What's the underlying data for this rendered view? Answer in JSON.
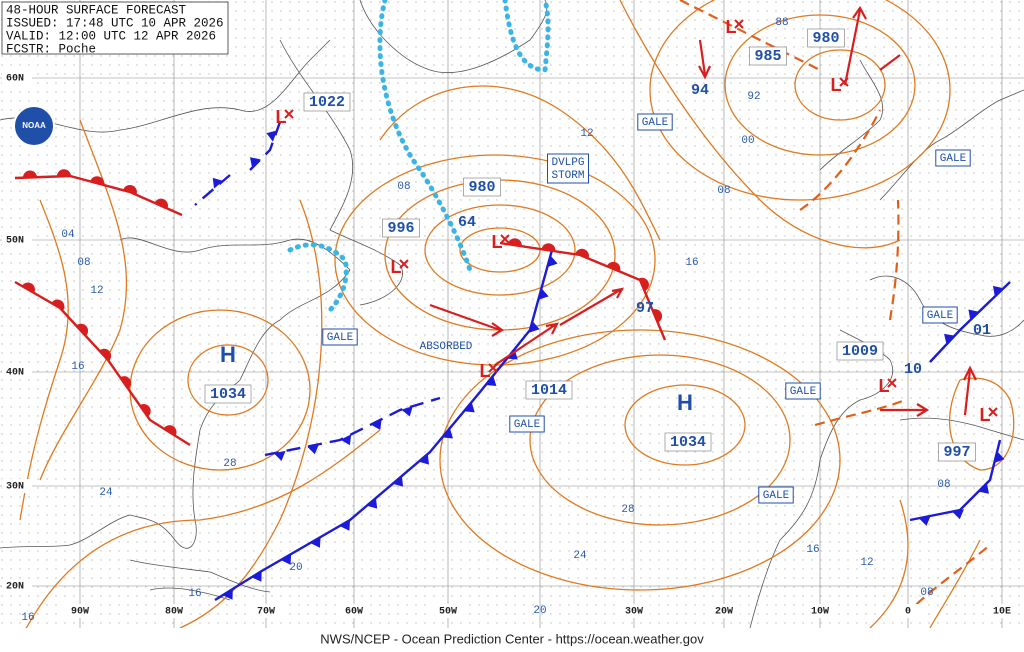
{
  "header": {
    "title": "48-HOUR SURFACE FORECAST",
    "issued": "ISSUED: 17:48 UTC 10 APR 2026",
    "valid": "VALID:  12:00 UTC 12 APR 2026",
    "forecaster": "FCSTR: Poche"
  },
  "logo_text": "NOAA",
  "footer": "NWS/NCEP - Ocean Prediction Center - https://ocean.weather.gov",
  "latitude_labels": [
    "60N",
    "50N",
    "40N",
    "30N",
    "20N"
  ],
  "longitude_labels": [
    "90W",
    "80W",
    "70W",
    "60W",
    "50W",
    "30W",
    "20W",
    "10W",
    "0",
    "10E"
  ],
  "high_labels": [
    "H",
    "H"
  ],
  "low_labels": [
    "L",
    "L",
    "L",
    "L",
    "L",
    "L",
    "L",
    "L"
  ],
  "pressure_labels": [
    "1022",
    "1034",
    "996",
    "980",
    "64",
    "1014",
    "97",
    "1034",
    "94",
    "985",
    "980",
    "1009",
    "10",
    "997",
    "01"
  ],
  "isobar_labels": [
    "88",
    "92",
    "00",
    "08",
    "12",
    "08",
    "04",
    "08",
    "12",
    "16",
    "16",
    "28",
    "24",
    "20",
    "16",
    "16",
    "20",
    "28",
    "24",
    "16",
    "12",
    "08",
    "08"
  ],
  "annotations": {
    "developing": [
      "DVLPG",
      "STORM"
    ],
    "absorbed": "ABSORBED",
    "gale": [
      "GALE",
      "GALE",
      "GALE",
      "GALE",
      "GALE",
      "GALE",
      "GALE"
    ]
  }
}
